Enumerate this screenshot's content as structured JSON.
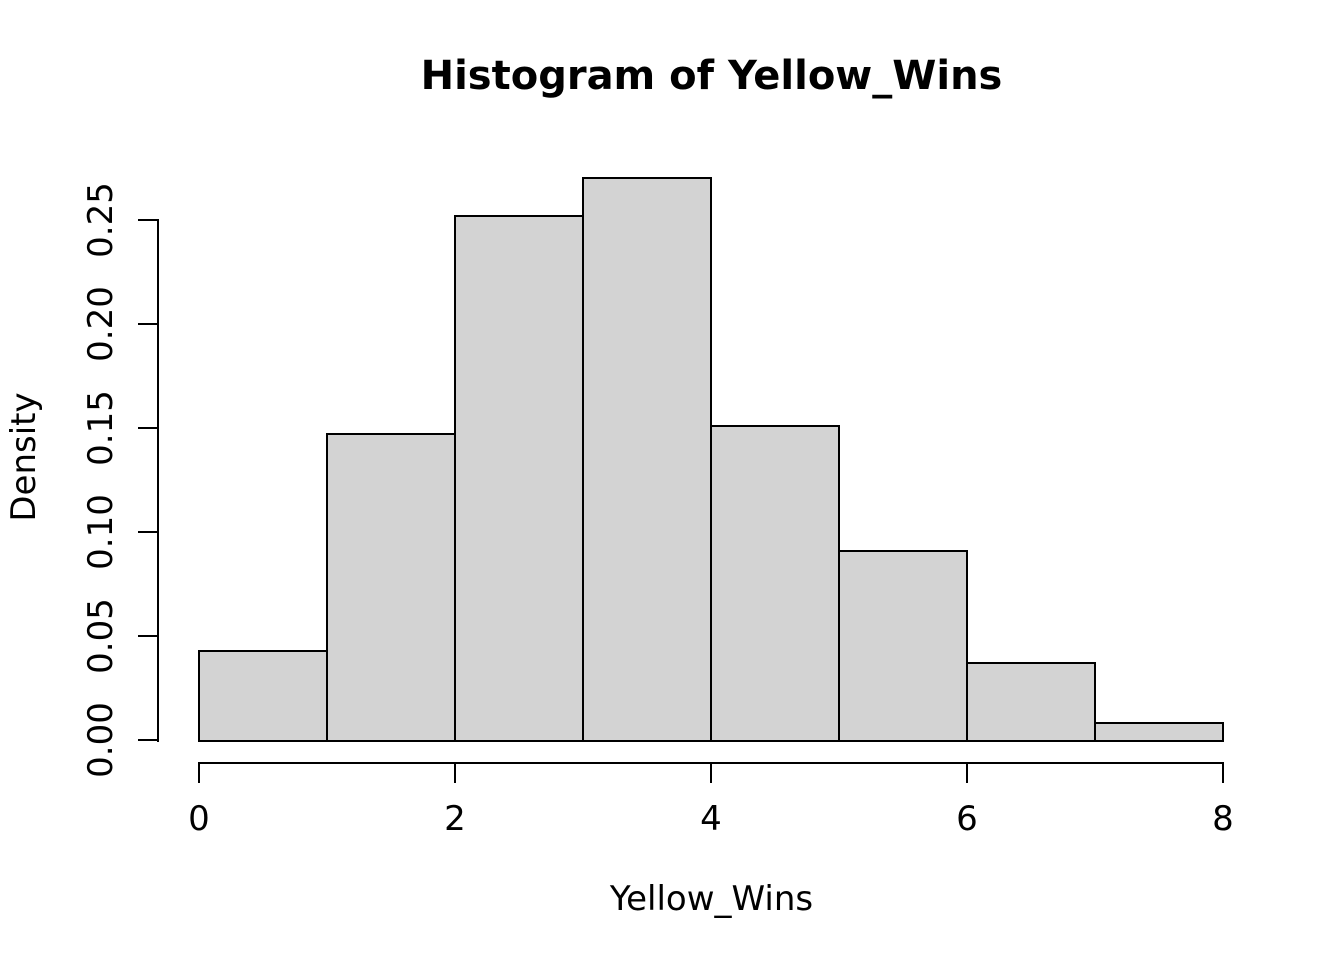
{
  "figure": {
    "background": "#ffffff"
  },
  "chart_data": {
    "type": "bar",
    "subtype": "histogram",
    "title": "Histogram of Yellow_Wins",
    "xlabel": "Yellow_Wins",
    "ylabel": "Density",
    "bin_width": 1,
    "bin_edges": [
      0,
      1,
      2,
      3,
      4,
      5,
      6,
      7,
      8
    ],
    "densities": [
      0.043,
      0.147,
      0.252,
      0.27,
      0.151,
      0.091,
      0.037,
      0.008
    ],
    "x_ticks": [
      0,
      2,
      4,
      6,
      8
    ],
    "y_ticks": [
      0.0,
      0.05,
      0.1,
      0.15,
      0.2,
      0.25
    ],
    "y_tick_labels": [
      "0.00",
      "0.05",
      "0.10",
      "0.15",
      "0.20",
      "0.25"
    ],
    "xlim": [
      0,
      8
    ],
    "ylim": [
      0,
      0.27
    ],
    "grid": false,
    "legend": null,
    "bar_fill": "#d3d3d3",
    "bar_border": "#000000",
    "axis_color": "#000000",
    "text_color": "#000000"
  }
}
